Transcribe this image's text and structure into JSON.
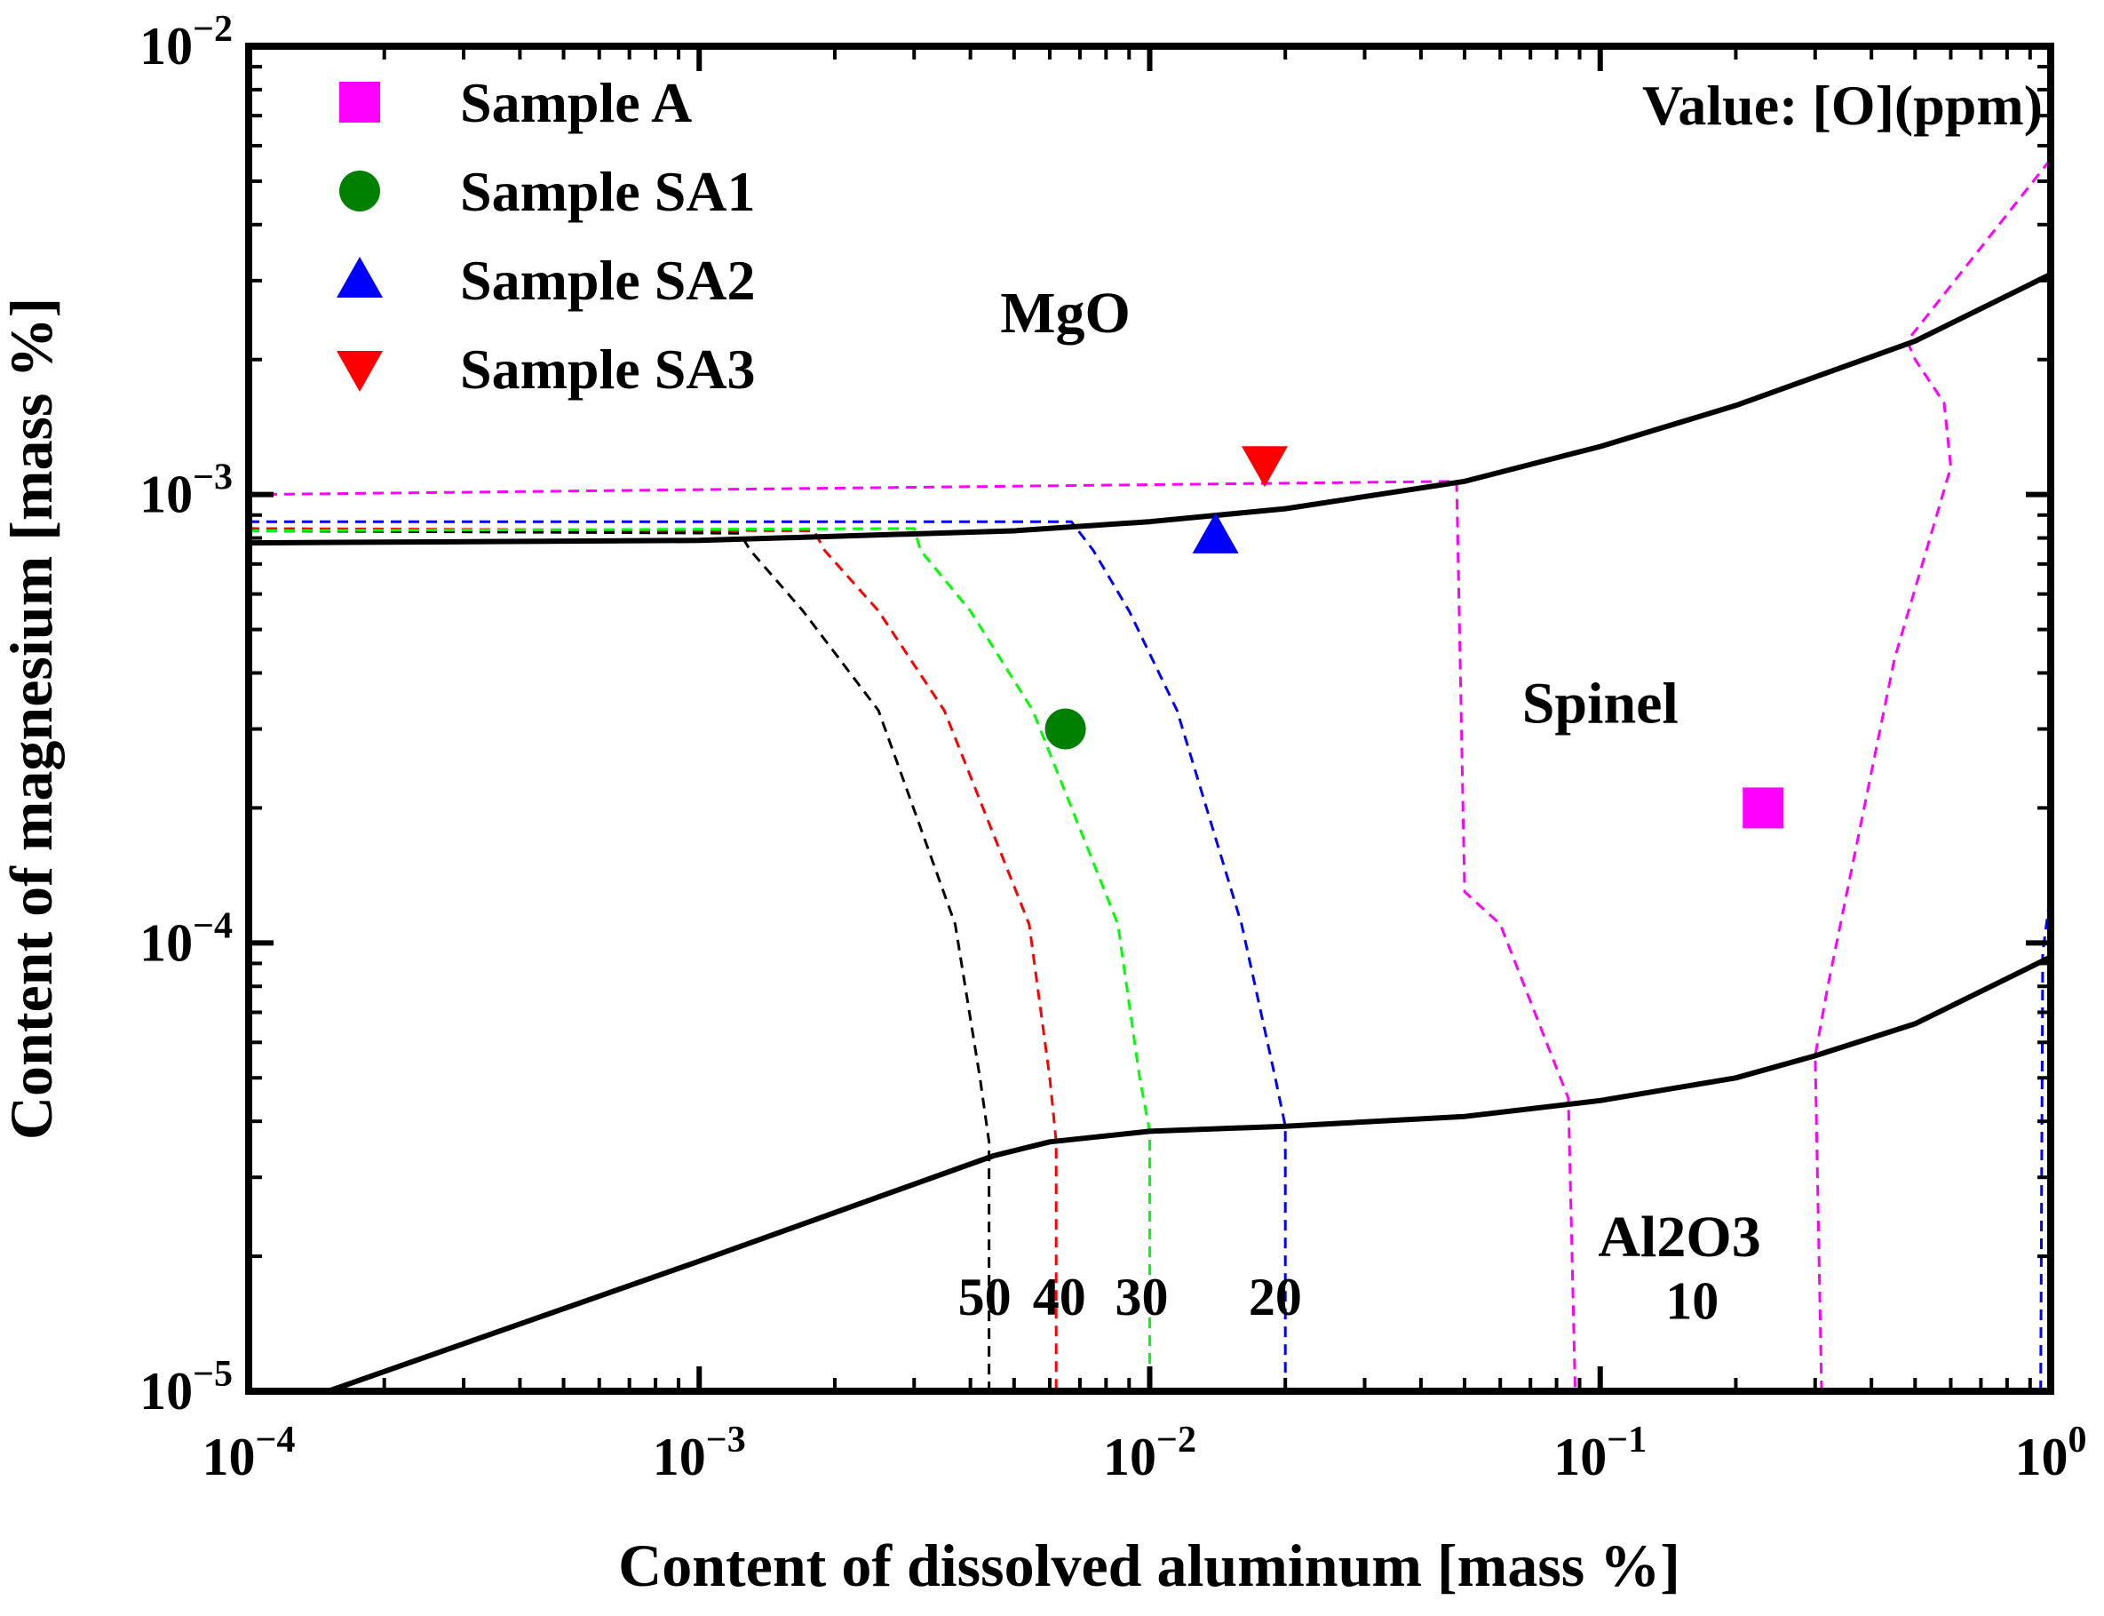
{
  "chart_data": {
    "type": "scatter",
    "xscale": "log",
    "yscale": "log",
    "xlim": [
      0.0001,
      1
    ],
    "ylim": [
      1e-05,
      0.01
    ],
    "xlabel": "Content of dissolved aluminum [mass %]",
    "ylabel": "Content of magnesium [mass %]",
    "x_ticks": [
      {
        "value": 0.0001,
        "base": "10",
        "exp": "−4"
      },
      {
        "value": 0.001,
        "base": "10",
        "exp": "−3"
      },
      {
        "value": 0.01,
        "base": "10",
        "exp": "−2"
      },
      {
        "value": 0.1,
        "base": "10",
        "exp": "−1"
      },
      {
        "value": 1,
        "base": "10",
        "exp": "0"
      }
    ],
    "y_ticks": [
      {
        "value": 1e-05,
        "base": "10",
        "exp": "−5"
      },
      {
        "value": 0.0001,
        "base": "10",
        "exp": "−4"
      },
      {
        "value": 0.001,
        "base": "10",
        "exp": "−3"
      },
      {
        "value": 0.01,
        "base": "10",
        "exp": "−2"
      }
    ],
    "legend_title": "Value: [O](ppm)",
    "legend": [
      {
        "label": "Sample A",
        "marker": "square",
        "color": "#ff00ff"
      },
      {
        "label": "Sample SA1",
        "marker": "circle",
        "color": "#008000"
      },
      {
        "label": "Sample SA2",
        "marker": "triangle-up",
        "color": "#0000ff"
      },
      {
        "label": "Sample SA3",
        "marker": "triangle-down",
        "color": "#ff0000"
      }
    ],
    "points": [
      {
        "name": "Sample A",
        "x": 0.23,
        "y": 0.0002,
        "marker": "square",
        "color": "#ff00ff"
      },
      {
        "name": "Sample SA1",
        "x": 0.0065,
        "y": 0.0003,
        "marker": "circle",
        "color": "#008000"
      },
      {
        "name": "Sample SA2",
        "x": 0.014,
        "y": 0.00081,
        "marker": "triangle-up",
        "color": "#0000ff"
      },
      {
        "name": "Sample SA3",
        "x": 0.018,
        "y": 0.00117,
        "marker": "triangle-down",
        "color": "#ff0000"
      }
    ],
    "region_labels": [
      {
        "text": "MgO",
        "x": 0.0065,
        "y": 0.0023
      },
      {
        "text": "Spinel",
        "x": 0.1,
        "y": 0.00031
      },
      {
        "text": "Al2O3",
        "x": 0.15,
        "y": 2e-05
      }
    ],
    "boundaries": [
      {
        "name": "MgO-Spinel boundary",
        "color": "#000000",
        "points": [
          [
            0.0001,
            0.00078
          ],
          [
            0.001,
            0.00079
          ],
          [
            0.005,
            0.00083
          ],
          [
            0.01,
            0.00087
          ],
          [
            0.02,
            0.00093
          ],
          [
            0.05,
            0.00107
          ],
          [
            0.1,
            0.00128
          ],
          [
            0.2,
            0.00158
          ],
          [
            0.5,
            0.0022
          ],
          [
            1,
            0.0031
          ]
        ]
      },
      {
        "name": "Spinel-Al2O3 boundary",
        "color": "#000000",
        "points": [
          [
            0.00015,
            1e-05
          ],
          [
            0.001,
            1.95e-05
          ],
          [
            0.0045,
            3.35e-05
          ],
          [
            0.006,
            3.6e-05
          ],
          [
            0.01,
            3.8e-05
          ],
          [
            0.02,
            3.9e-05
          ],
          [
            0.05,
            4.1e-05
          ],
          [
            0.1,
            4.45e-05
          ],
          [
            0.2,
            5e-05
          ],
          [
            0.3,
            5.6e-05
          ],
          [
            0.5,
            6.6e-05
          ],
          [
            1,
            9.3e-05
          ]
        ]
      }
    ],
    "iso_oxygen": [
      {
        "value": "50",
        "color": "#000000",
        "points": [
          [
            0.0001,
            0.00083
          ],
          [
            0.00123,
            0.00082
          ],
          [
            0.0013,
            0.00075
          ],
          [
            0.0017,
            0.00055
          ],
          [
            0.0025,
            0.00033
          ],
          [
            0.0037,
            0.00011
          ],
          [
            0.0042,
            5e-05
          ],
          [
            0.0044,
            3.6e-05
          ],
          [
            0.0044,
            1e-05
          ]
        ]
      },
      {
        "value": "40",
        "color": "#ff0000",
        "points": [
          [
            0.0001,
            0.00084
          ],
          [
            0.0018,
            0.00083
          ],
          [
            0.0019,
            0.00075
          ],
          [
            0.0025,
            0.00055
          ],
          [
            0.0035,
            0.00033
          ],
          [
            0.0054,
            0.00011
          ],
          [
            0.006,
            5e-05
          ],
          [
            0.0062,
            3.6e-05
          ],
          [
            0.0062,
            1e-05
          ]
        ]
      },
      {
        "value": "30",
        "color": "#00ff00",
        "points": [
          [
            0.0001,
            0.00083
          ],
          [
            0.003,
            0.00084
          ],
          [
            0.0031,
            0.00075
          ],
          [
            0.004,
            0.00055
          ],
          [
            0.0055,
            0.00033
          ],
          [
            0.0085,
            0.00011
          ],
          [
            0.0095,
            5e-05
          ],
          [
            0.01,
            3.8e-05
          ],
          [
            0.01,
            1e-05
          ]
        ]
      },
      {
        "value": "20",
        "color": "#0000ff",
        "points": [
          [
            0.0001,
            0.00087
          ],
          [
            0.0067,
            0.00087
          ],
          [
            0.0075,
            0.00075
          ],
          [
            0.009,
            0.00055
          ],
          [
            0.0115,
            0.00033
          ],
          [
            0.016,
            0.00011
          ],
          [
            0.019,
            5e-05
          ],
          [
            0.02,
            3.9e-05
          ],
          [
            0.02,
            1e-05
          ]
        ]
      },
      {
        "value": "20 (high Al)",
        "color": "#0000ff",
        "points": [
          [
            0.95,
            1e-05
          ],
          [
            0.96,
            9.5e-05
          ],
          [
            1,
            0.00013
          ]
        ]
      },
      {
        "value": "10",
        "color": "#ff00ff",
        "points": [
          [
            0.0001,
            0.001
          ],
          [
            0.048,
            0.00107
          ],
          [
            0.05,
            0.00013
          ],
          [
            0.06,
            0.00011
          ],
          [
            0.085,
            4.5e-05
          ],
          [
            0.088,
            1e-05
          ]
        ]
      },
      {
        "value": "10 (high Al)",
        "color": "#ff00ff",
        "points": [
          [
            0.31,
            1e-05
          ],
          [
            0.3,
            5.6e-05
          ],
          [
            0.32,
            8e-05
          ],
          [
            0.45,
            0.00043
          ],
          [
            0.6,
            0.00115
          ],
          [
            0.58,
            0.0016
          ],
          [
            0.5,
            0.002
          ],
          [
            0.48,
            0.0022
          ],
          [
            1,
            0.0056
          ]
        ]
      }
    ],
    "contour_labels": [
      {
        "text": "50",
        "x": 0.0043,
        "y": 1.48e-05
      },
      {
        "text": "40",
        "x": 0.0063,
        "y": 1.48e-05
      },
      {
        "text": "30",
        "x": 0.0096,
        "y": 1.48e-05
      },
      {
        "text": "20",
        "x": 0.019,
        "y": 1.48e-05
      },
      {
        "text": "10",
        "x": 0.16,
        "y": 1.45e-05
      }
    ]
  }
}
